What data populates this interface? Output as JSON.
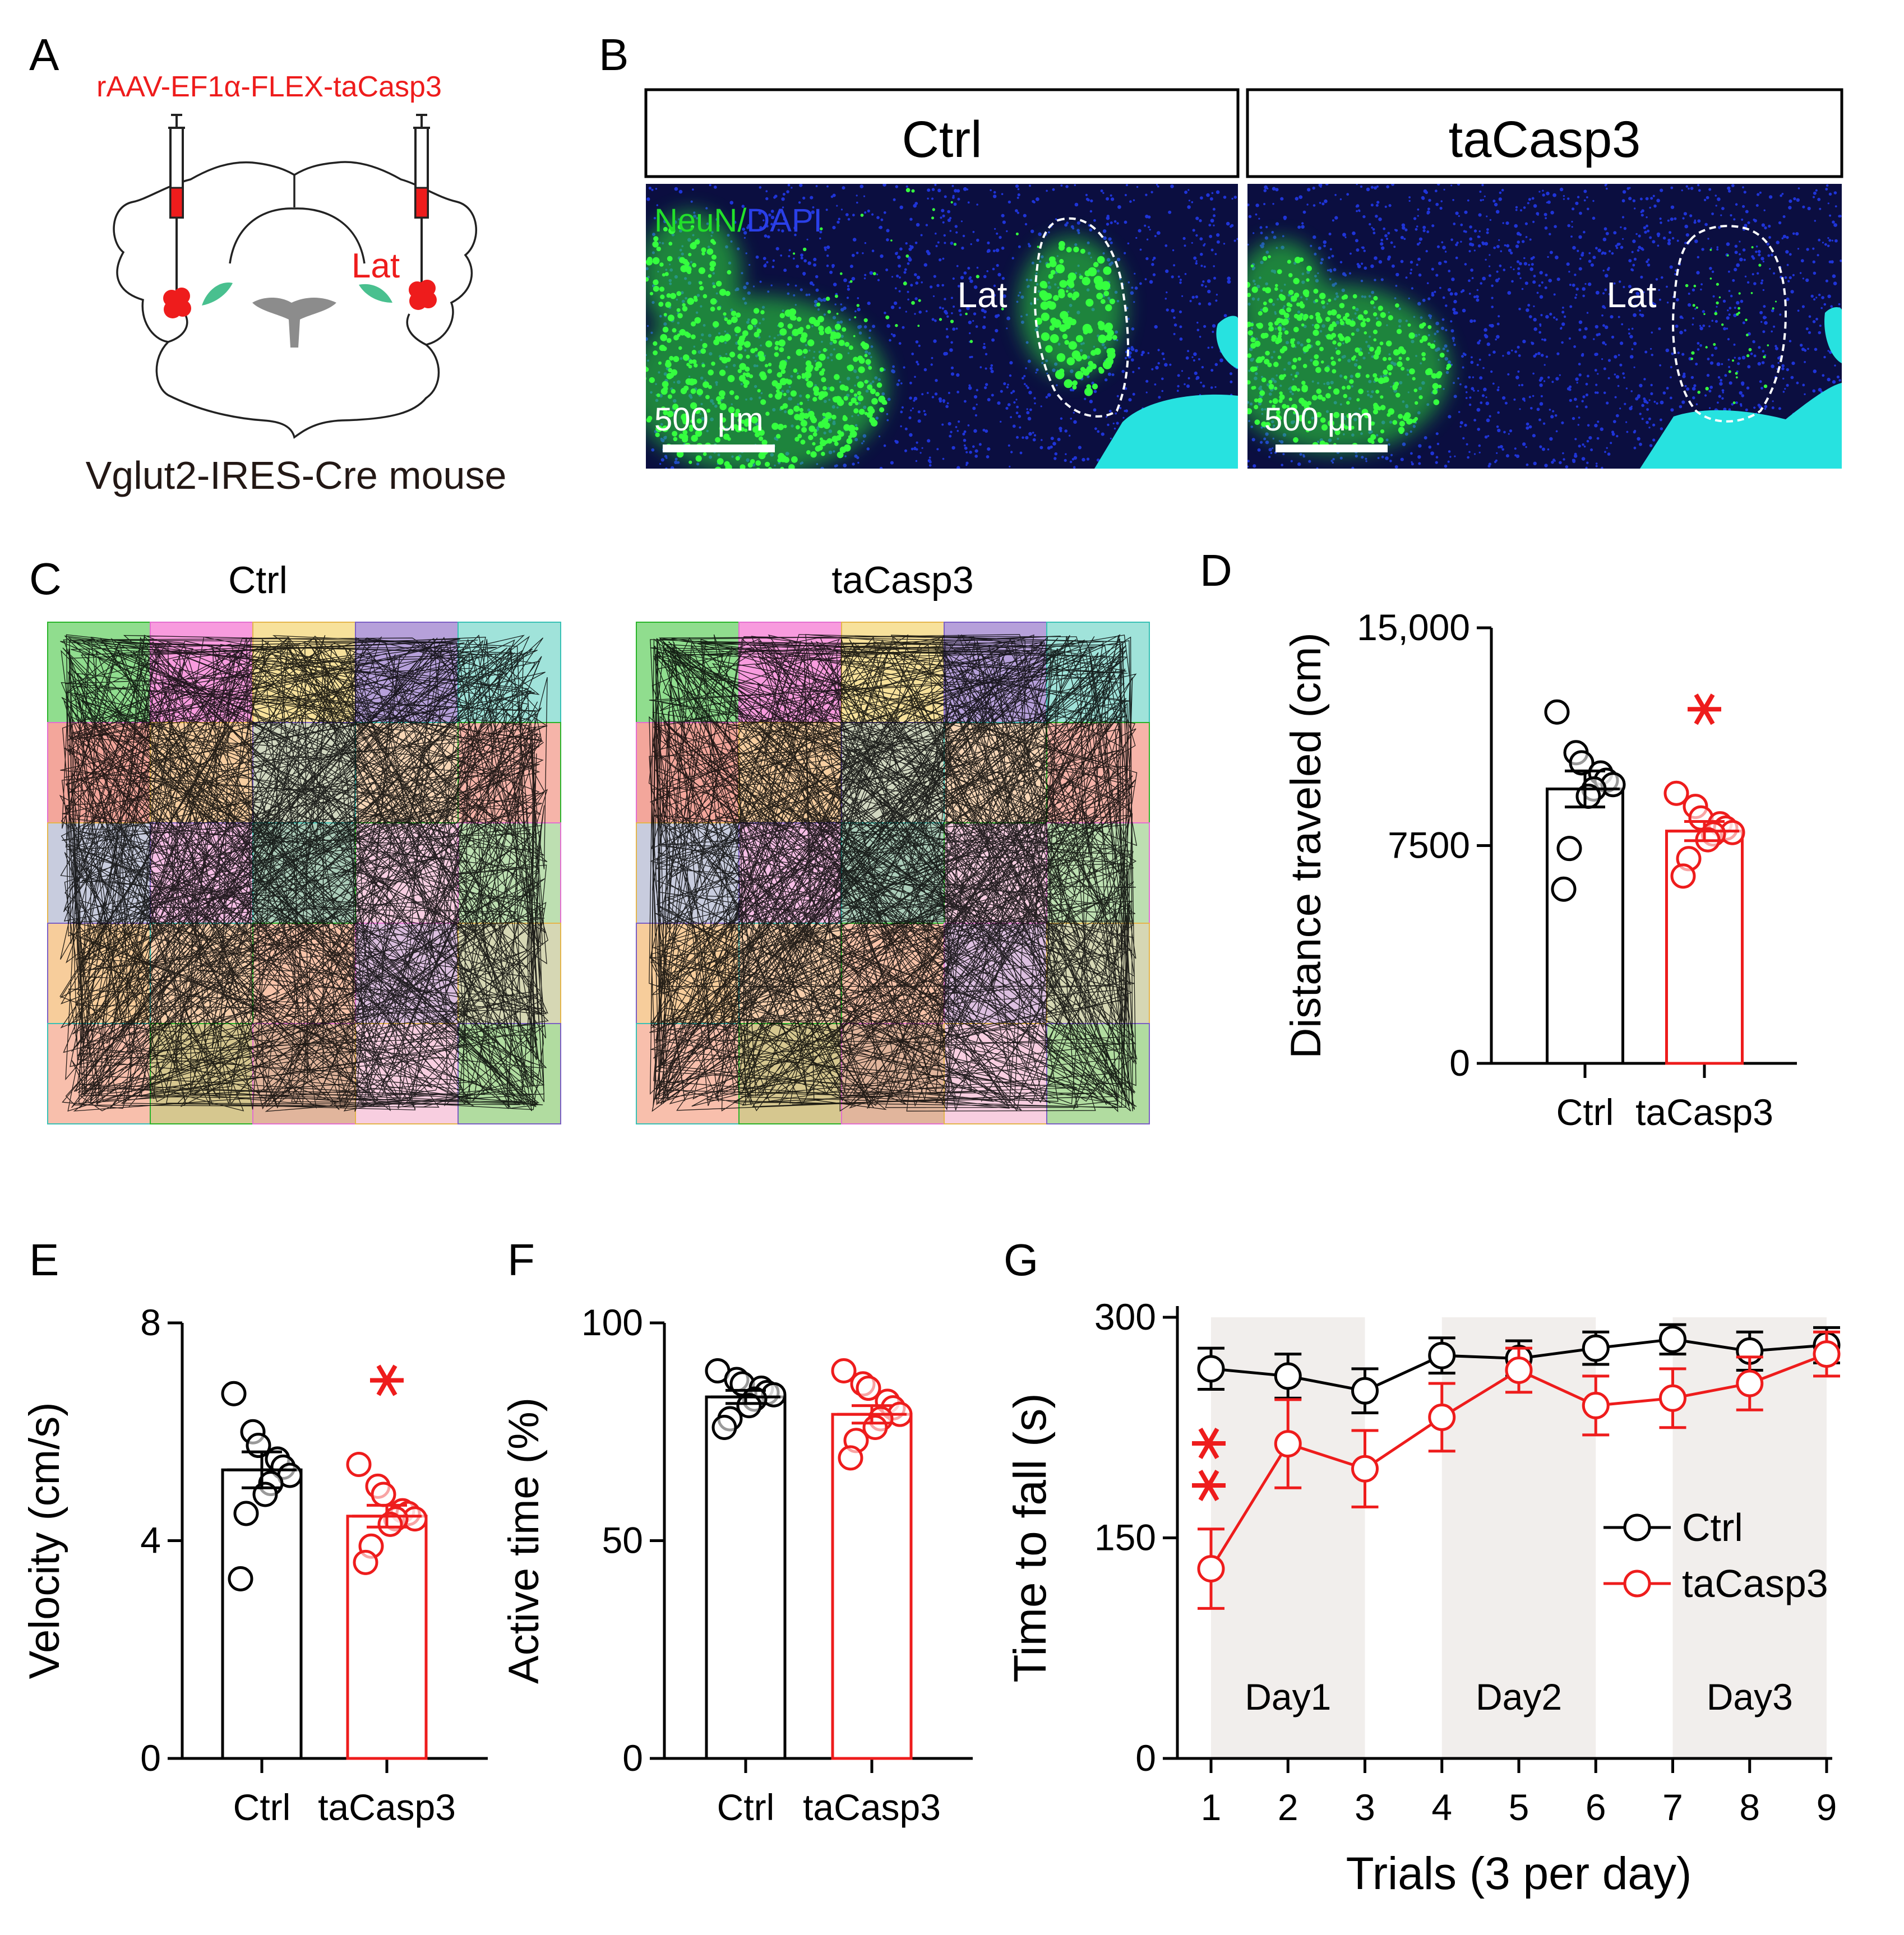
{
  "colors": {
    "ctrl": "#000000",
    "tacasp3": "#ee1c1c",
    "neun": "#22e02a",
    "dapi": "#1a2fe0",
    "brain_region": "#49c08f",
    "ventricle": "#8c8c8c",
    "day_shade": "#f1eeec"
  },
  "panelA": {
    "letter": "A",
    "virus": "rAAV-EF1α-FLEX-taCasp3",
    "region": "Lat",
    "mouse": "Vglut2-IRES-Cre mouse"
  },
  "panelB": {
    "letter": "B",
    "headers": [
      "Ctrl",
      "taCasp3"
    ],
    "stain_neun": "NeuN",
    "stain_sep": "/",
    "stain_dapi": "DAPI",
    "region": "Lat",
    "scale": "500 μm"
  },
  "panelC": {
    "letter": "C",
    "titles": [
      "Ctrl",
      "taCasp3"
    ],
    "grid_colors": [
      [
        "#7cd77a",
        "#f78ad8",
        "#f6dc8a",
        "#a98fd4",
        "#8fded3"
      ],
      [
        "#f1968a",
        "#f6c58f",
        "#c9d0b5",
        "#f6cfa9",
        "#f5a79a"
      ],
      [
        "#bec3d8",
        "#f5b3e0",
        "#9ec4ae",
        "#f6c5dc",
        "#b2d9a3"
      ],
      [
        "#f6c48a",
        "#f4c69c",
        "#f7b89a",
        "#d6b4da",
        "#cfd0a7"
      ],
      [
        "#f7b49e",
        "#cfbd7b",
        "#dca88b",
        "#f7c6da",
        "#a3d68f"
      ]
    ],
    "grid_edges": [
      "#2ab42a",
      "#e36fd0",
      "#e4b54c",
      "#7b5fc4",
      "#39c1b5"
    ]
  },
  "chart_data": [
    {
      "panel": "D",
      "type": "bar",
      "categories": [
        "Ctrl",
        "taCasp3"
      ],
      "values": [
        9450,
        8000
      ],
      "sem": [
        620,
        330
      ],
      "points": [
        [
          12100,
          10700,
          10350,
          10000,
          9750,
          9600,
          9450,
          9200,
          7400,
          6000
        ],
        [
          9300,
          8850,
          8450,
          8250,
          8100,
          7950,
          7900,
          7700,
          7050,
          6450
        ]
      ],
      "ylim": [
        0,
        15000
      ],
      "yticks": [
        0,
        7500,
        15000
      ],
      "ytick_labels": [
        "0",
        "7500",
        "15,000"
      ],
      "ylabel": "Distance  traveled (cm)",
      "significance": "*"
    },
    {
      "panel": "E",
      "type": "bar",
      "categories": [
        "Ctrl",
        "taCasp3"
      ],
      "values": [
        5.3,
        4.45
      ],
      "sem": [
        0.33,
        0.2
      ],
      "points": [
        [
          6.7,
          6.0,
          5.75,
          5.5,
          5.35,
          5.2,
          5.05,
          4.85,
          4.5,
          3.3
        ],
        [
          5.4,
          5.0,
          4.85,
          4.55,
          4.5,
          4.4,
          4.4,
          4.3,
          3.9,
          3.6
        ]
      ],
      "ylim": [
        0,
        8
      ],
      "yticks": [
        0,
        4,
        8
      ],
      "ytick_labels": [
        "0",
        "4",
        "8"
      ],
      "ylabel": "Velocity (cm/s)",
      "significance": "*"
    },
    {
      "panel": "F",
      "type": "bar",
      "categories": [
        "Ctrl",
        "taCasp3"
      ],
      "values": [
        83,
        79
      ],
      "sem": [
        1.5,
        2.0
      ],
      "points": [
        [
          89,
          87,
          86,
          85,
          84,
          83.5,
          82.5,
          81,
          78,
          76
        ],
        [
          89,
          86,
          85,
          82,
          80.5,
          79,
          78,
          76,
          73,
          69
        ]
      ],
      "ylim": [
        0,
        100
      ],
      "yticks": [
        0,
        50,
        100
      ],
      "ytick_labels": [
        "0",
        "50",
        "100"
      ],
      "ylabel": "Active time (%)"
    },
    {
      "panel": "G",
      "type": "line",
      "x": [
        1,
        2,
        3,
        4,
        5,
        6,
        7,
        8,
        9
      ],
      "xlim": [
        1,
        9
      ],
      "ylim": [
        0,
        300
      ],
      "yticks": [
        0,
        150,
        300
      ],
      "ytick_labels": [
        "0",
        "150",
        "300"
      ],
      "xlabel": "Trials (3 per day)",
      "ylabel": "Time to fall (s)",
      "series": [
        {
          "name": "Ctrl",
          "values": [
            265,
            260,
            250,
            274,
            272,
            279,
            285,
            277,
            281
          ],
          "sem": [
            14,
            15,
            15,
            12,
            12,
            11,
            10,
            13,
            12
          ]
        },
        {
          "name": "taCasp3",
          "values": [
            129,
            214,
            197,
            232,
            264,
            240,
            245,
            255,
            275
          ],
          "sem": [
            27,
            30,
            26,
            23,
            15,
            20,
            20,
            18,
            15
          ]
        }
      ],
      "day_shades": [
        {
          "label": "Day1",
          "from": 1,
          "to": 3
        },
        {
          "label": "Day2",
          "from": 4,
          "to": 6
        },
        {
          "label": "Day3",
          "from": 7,
          "to": 9
        }
      ],
      "significance": "**",
      "legend_position": "right"
    }
  ]
}
